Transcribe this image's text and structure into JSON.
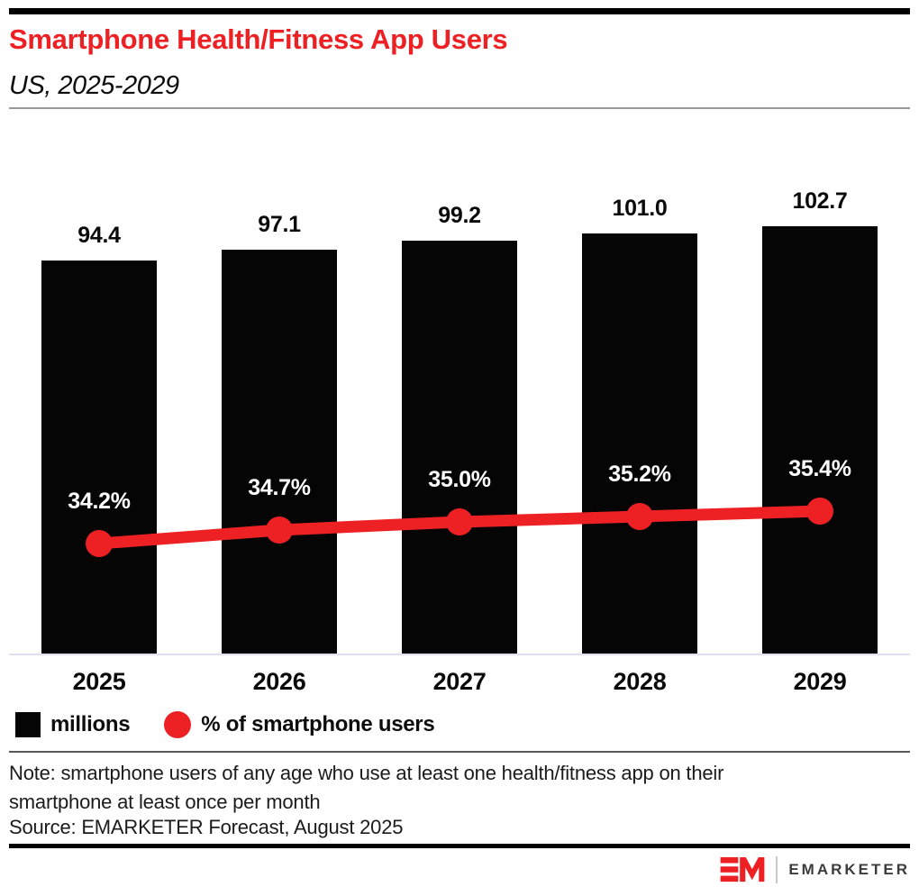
{
  "header": {
    "title": "Smartphone Health/Fitness App Users",
    "subtitle": "US, 2025-2029"
  },
  "chart_data": {
    "type": "bar",
    "subtype": "bar-line-combo",
    "title": "Smartphone Health/Fitness App Users",
    "subtitle": "US, 2025-2029",
    "categories": [
      "2025",
      "2026",
      "2027",
      "2028",
      "2029"
    ],
    "series": [
      {
        "name": "millions",
        "type": "bar",
        "color": "#050505",
        "values": [
          94.4,
          97.1,
          99.2,
          101.0,
          102.7
        ],
        "labels": [
          "94.4",
          "97.1",
          "99.2",
          "101.0",
          "102.7"
        ]
      },
      {
        "name": "% of smartphone users",
        "type": "line",
        "color": "#ED2024",
        "values": [
          34.2,
          34.7,
          35.0,
          35.2,
          35.4
        ],
        "labels": [
          "34.2%",
          "34.7%",
          "35.0%",
          "35.2%",
          "35.4%"
        ]
      }
    ],
    "xlabel": "",
    "ylabel": "",
    "ylim_bars": [
      0,
      110
    ],
    "grid": false,
    "axis_ticks_visible": false,
    "legend_position": "bottom-left"
  },
  "legend": {
    "items": [
      {
        "label": "millions",
        "swatch": "square",
        "color": "#050505"
      },
      {
        "label": "% of smartphone users",
        "swatch": "circle",
        "color": "#ED2024"
      }
    ]
  },
  "footnotes": {
    "note_lines": [
      "Note: smartphone users of any age who use at least one health/fitness app on their",
      "smartphone at least once per month"
    ],
    "source": "Source: EMARKETER Forecast, August 2025"
  },
  "brand": {
    "wordmark": "EMARKETER",
    "mark": "EM-monogram",
    "color": "#ED2024"
  },
  "colors": {
    "title_red": "#ED2024",
    "line_red": "#ED2024",
    "bar_black": "#050505",
    "axis_line": "#dde1ef",
    "divider_gray": "#595959",
    "subtitle_rule_gray": "#999999"
  }
}
